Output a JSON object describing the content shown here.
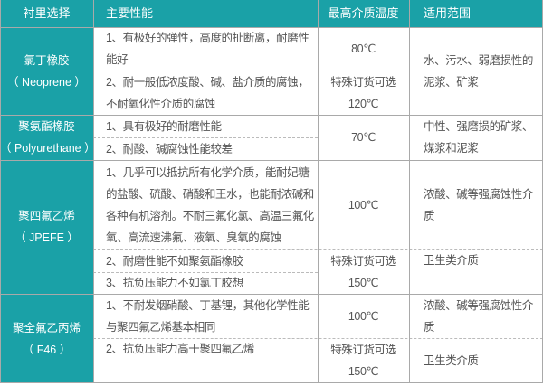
{
  "headers": [
    "衬里选择",
    "主要性能",
    "最高介质温度",
    "适用范围"
  ],
  "rows": [
    {
      "name": "氯丁橡胶",
      "code": "（ Neoprene ）",
      "props": [
        "1、有极好的弹性，高度的扯断离，耐磨性能好",
        "2、耐一般低浓度酸、碱、盐介质的腐蚀，不耐氧化性介质的腐蚀"
      ],
      "temps": [
        "80℃",
        "特殊订货可选",
        "120℃"
      ],
      "scope": [
        "水、污水、弱磨损性的泥浆、矿浆"
      ]
    },
    {
      "name": "聚氨酯橡胶",
      "code": "（ Polyurethane ）",
      "props": [
        "1、具有极好的耐磨性能",
        "2、耐酸、碱腐蚀性能较差"
      ],
      "temps": [
        "70℃"
      ],
      "scope": [
        "中性、强磨损的矿浆、煤浆和泥浆"
      ]
    },
    {
      "name": "聚四氟乙烯",
      "code": "（ JPEFE ）",
      "props": [
        "1、几乎可以抵抗所有化学介质，能耐妃糖的盐酸、硫酸、硝酸和王水，也能耐浓碱和各种有机溶剂。不耐三氟化氯、高温三氟化氧、高流速沸氟、液氧、臭氧的腐蚀",
        "2、耐磨性能不如聚氨酯橡胶",
        "3、抗负压能力不如氯丁胶想"
      ],
      "temps": [
        "100℃",
        "特殊订货可选",
        "150℃"
      ],
      "scope": [
        "浓酸、碱等强腐蚀性介质",
        "卫生类介质"
      ]
    },
    {
      "name": "聚全氟乙丙烯",
      "code": "（ F46 ）",
      "props": [
        "1、不耐发烟硝酸、丁基锂，其他化学性能与聚四氟乙烯基本相同",
        "2、抗负压能力高于聚四氟乙烯"
      ],
      "temps": [
        "100℃",
        "特殊订货可选",
        "150℃"
      ],
      "scope": [
        "浓酸、碱等强腐蚀性介质",
        "卫生类介质"
      ]
    }
  ],
  "colors": {
    "header": "#1aa1a7",
    "text": "#555555",
    "border": "#a9a9a9"
  }
}
